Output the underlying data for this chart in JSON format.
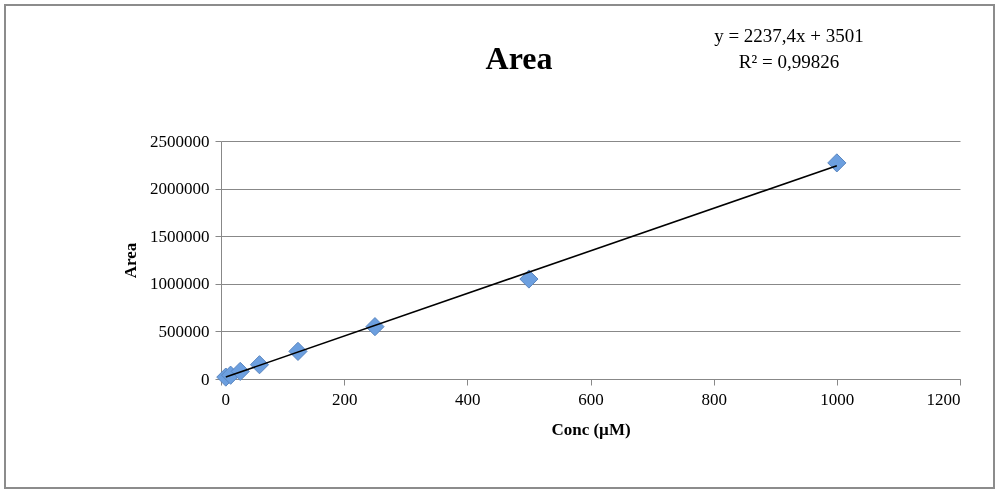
{
  "chart_data": {
    "type": "scatter",
    "title": "Area",
    "xlabel": "Conc (µM)",
    "ylabel": "Area",
    "annotations": [
      "y = 2237,4x + 3501",
      "R² = 0,99826"
    ],
    "series": [
      {
        "color": "#6c9fdf",
        "marker": "diamond",
        "x": [
          7.8,
          15.6,
          31.25,
          62.5,
          125,
          250,
          500,
          1000
        ],
        "values": [
          20000,
          40000,
          80000,
          150000,
          290000,
          550000,
          1050000,
          2270000
        ]
      },
      {
        "type": "line",
        "color": "#000000",
        "marker": "none",
        "x": [
          7.8,
          1000
        ],
        "values": [
          21000,
          2241000
        ]
      }
    ],
    "xlim": [
      0,
      1200
    ],
    "xticks": [
      0,
      200,
      400,
      600,
      800,
      1000,
      1200
    ],
    "ylim": [
      0,
      2500000
    ],
    "yticks": [
      0,
      500000,
      1000000,
      1500000,
      2000000,
      2500000
    ],
    "grid": "y",
    "legend": false
  }
}
